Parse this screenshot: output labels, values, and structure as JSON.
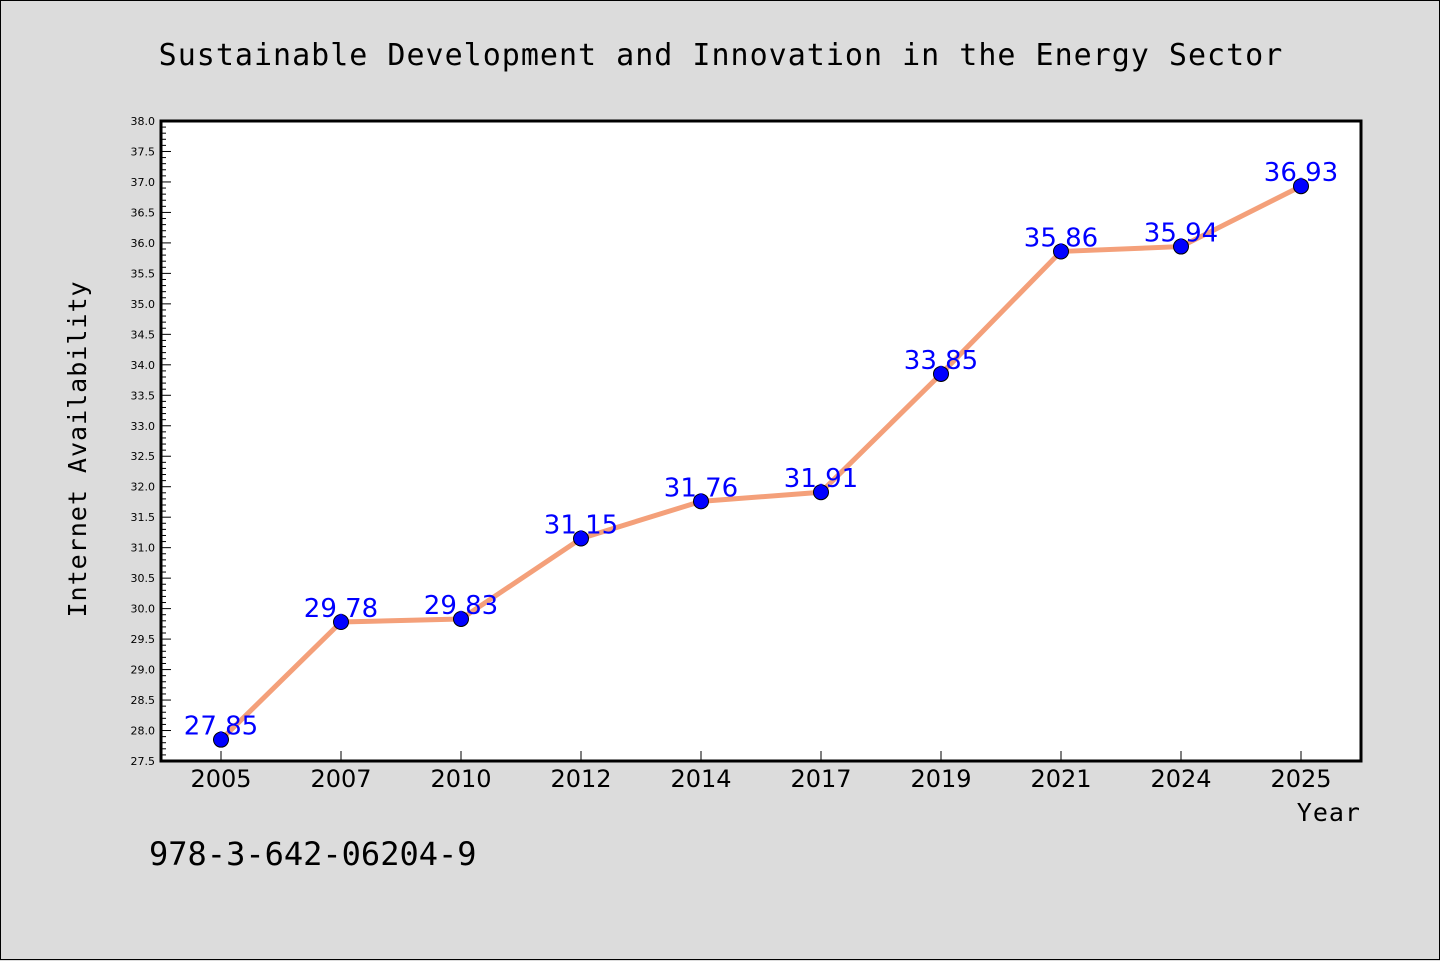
{
  "chart_data": {
    "type": "line",
    "title": "Sustainable Development and Innovation in the Energy Sector",
    "xlabel": "Year",
    "ylabel": "Internet Availability",
    "categories": [
      "2005",
      "2007",
      "2010",
      "2012",
      "2014",
      "2017",
      "2019",
      "2021",
      "2024",
      "2025"
    ],
    "values": [
      27.85,
      29.78,
      29.83,
      31.15,
      31.76,
      31.91,
      33.85,
      35.86,
      35.94,
      36.93
    ],
    "data_labels": [
      "27.85",
      "29.78",
      "29.83",
      "31.15",
      "31.76",
      "31.91",
      "33.85",
      "35.86",
      "35.94",
      "36.93"
    ],
    "ylim": [
      27.5,
      38.0
    ],
    "ytick_step": 0.5,
    "grid": false,
    "line_color": "#f4a07a",
    "marker_color": "#0000ff",
    "label_color": "#0000ff"
  },
  "footer": {
    "isbn": "978-3-642-06204-9"
  }
}
